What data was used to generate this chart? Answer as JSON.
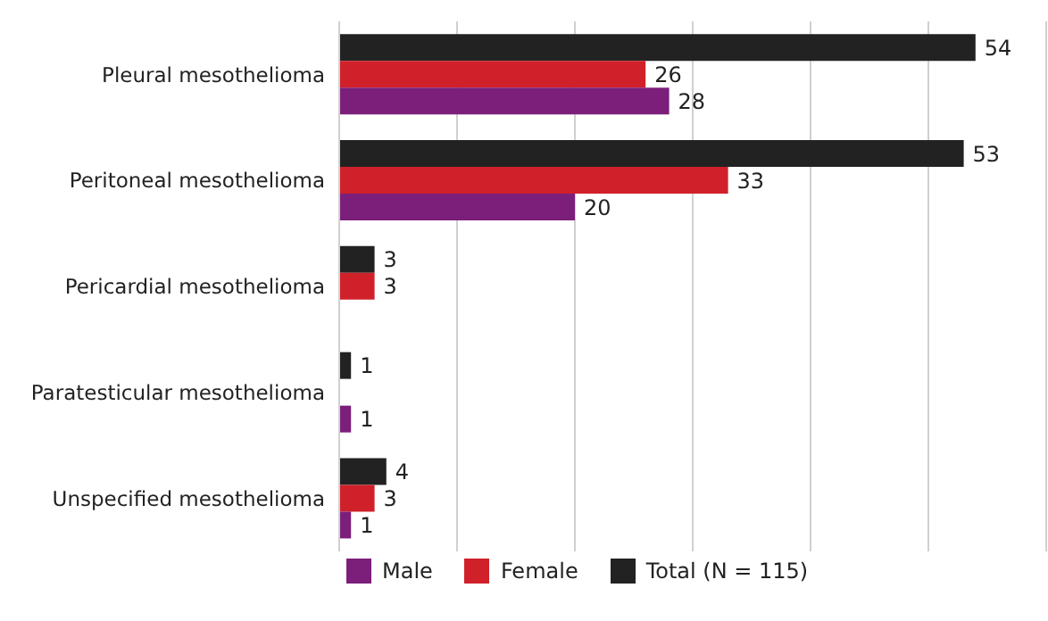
{
  "chart_data": {
    "type": "bar",
    "orientation": "horizontal",
    "categories": [
      "Pleural mesothelioma",
      "Peritoneal mesothelioma",
      "Pericardial mesothelioma",
      "Paratesticular mesothelioma",
      "Unspecified mesothelioma"
    ],
    "series": [
      {
        "name": "Male",
        "color": "#7b1f7b",
        "values": [
          28,
          20,
          null,
          1,
          1
        ]
      },
      {
        "name": "Female",
        "color": "#d0202a",
        "values": [
          26,
          33,
          3,
          null,
          3
        ]
      },
      {
        "name": "Total (N = 115)",
        "color": "#222222",
        "values": [
          54,
          53,
          3,
          1,
          4
        ]
      }
    ],
    "xlim": [
      0,
      60
    ],
    "xticks": [
      {
        "value": 0,
        "label": null
      },
      {
        "value": 10,
        "label": null
      },
      {
        "value": 20,
        "label": null
      },
      {
        "value": 30,
        "label": null
      },
      {
        "value": 40,
        "label": null
      },
      {
        "value": 50,
        "label": null
      },
      {
        "value": 60,
        "label": null
      }
    ],
    "tick_labels": "y",
    "grid": "x",
    "legend": "bottom",
    "data_labels": true
  }
}
